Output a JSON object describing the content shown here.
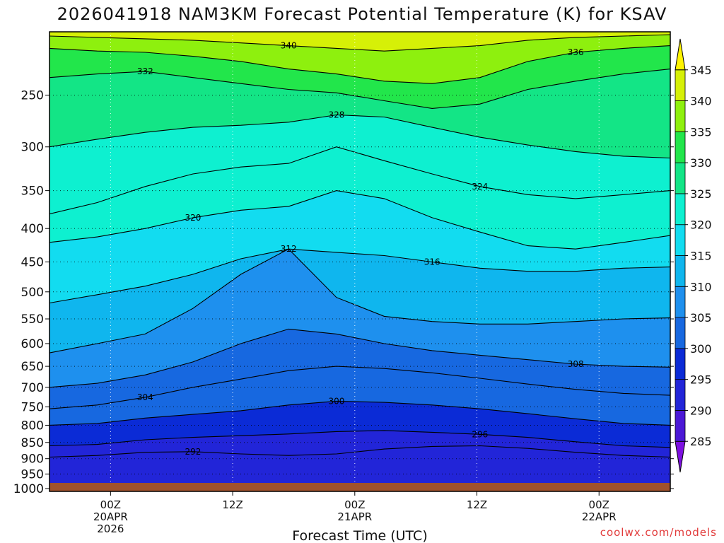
{
  "chart_data": {
    "type": "heatmap",
    "title": "2026041918 NAM3KM Forecast Potential Temperature (K) for KSAV",
    "xlabel": "Forecast Time (UTC)",
    "ylabel": "",
    "x_ticks": [
      {
        "label": "00Z",
        "date": "20APR",
        "year": "2026",
        "hour": 6
      },
      {
        "label": "12Z",
        "date": "",
        "year": "",
        "hour": 18
      },
      {
        "label": "00Z",
        "date": "21APR",
        "year": "",
        "hour": 30
      },
      {
        "label": "12Z",
        "date": "",
        "year": "",
        "hour": 42
      },
      {
        "label": "00Z",
        "date": "22APR",
        "year": "",
        "hour": 54
      }
    ],
    "x_range_hours": [
      0,
      61
    ],
    "y_ticks": [
      250,
      300,
      350,
      400,
      450,
      500,
      550,
      600,
      650,
      700,
      750,
      800,
      850,
      900,
      950,
      1000
    ],
    "y_range": [
      200,
      1010
    ],
    "y_scale": "log-pressure",
    "grid": true,
    "colorbar": {
      "levels": [
        285,
        290,
        295,
        300,
        305,
        310,
        315,
        320,
        325,
        330,
        335,
        340,
        345
      ],
      "colors": [
        "#7d10e0",
        "#4b18d6",
        "#2225d8",
        "#0b2bd6",
        "#1768e0",
        "#1e90ee",
        "#0fb6ee",
        "#12dcf0",
        "#0ef0d0",
        "#13e586",
        "#22e64b",
        "#8ef00e",
        "#d6f007",
        "#fff400"
      ]
    },
    "contours": [
      {
        "value": 292,
        "levels": [
          895,
          890,
          880,
          878,
          885,
          890,
          885,
          870,
          862,
          860,
          868,
          880,
          890,
          895
        ]
      },
      {
        "value": 296,
        "levels": [
          860,
          856,
          842,
          835,
          830,
          825,
          818,
          815,
          820,
          826,
          835,
          848,
          860,
          865
        ]
      },
      {
        "value": 300,
        "levels": [
          800,
          795,
          780,
          770,
          760,
          745,
          735,
          738,
          745,
          755,
          768,
          782,
          795,
          800
        ]
      },
      {
        "value": 304,
        "levels": [
          755,
          745,
          725,
          700,
          680,
          660,
          650,
          655,
          665,
          678,
          692,
          705,
          715,
          720
        ]
      },
      {
        "value": 308,
        "levels": [
          700,
          690,
          670,
          640,
          600,
          570,
          580,
          600,
          615,
          625,
          635,
          645,
          650,
          652
        ]
      },
      {
        "value": 312,
        "levels": [
          620,
          600,
          580,
          530,
          470,
          430,
          510,
          545,
          555,
          560,
          560,
          555,
          550,
          548
        ]
      },
      {
        "value": 316,
        "levels": [
          520,
          505,
          490,
          470,
          445,
          430,
          435,
          440,
          450,
          460,
          465,
          465,
          460,
          458
        ]
      },
      {
        "value": 320,
        "levels": [
          420,
          412,
          400,
          385,
          375,
          370,
          350,
          360,
          385,
          405,
          425,
          430,
          420,
          410
        ]
      },
      {
        "value": 324,
        "levels": [
          380,
          365,
          345,
          330,
          322,
          318,
          300,
          315,
          330,
          345,
          355,
          360,
          355,
          350
        ]
      },
      {
        "value": 328,
        "levels": [
          300,
          292,
          285,
          280,
          278,
          275,
          268,
          270,
          280,
          290,
          298,
          305,
          310,
          312
        ]
      },
      {
        "value": 332,
        "levels": [
          235,
          232,
          230,
          235,
          240,
          245,
          248,
          255,
          262,
          258,
          245,
          238,
          232,
          228
        ]
      },
      {
        "value": 336,
        "levels": [
          212,
          214,
          215,
          218,
          222,
          228,
          232,
          238,
          240,
          235,
          222,
          215,
          212,
          210
        ]
      },
      {
        "value": 340,
        "levels": [
          203,
          204,
          205,
          206,
          208,
          210,
          212,
          214,
          212,
          210,
          206,
          204,
          203,
          202
        ]
      }
    ],
    "contour_x_hours": [
      0,
      4.7,
      9.4,
      14.1,
      18.8,
      23.5,
      28.2,
      32.9,
      37.6,
      42.3,
      47,
      51.7,
      56.4,
      61
    ]
  },
  "credit": "coolwx.com/models"
}
